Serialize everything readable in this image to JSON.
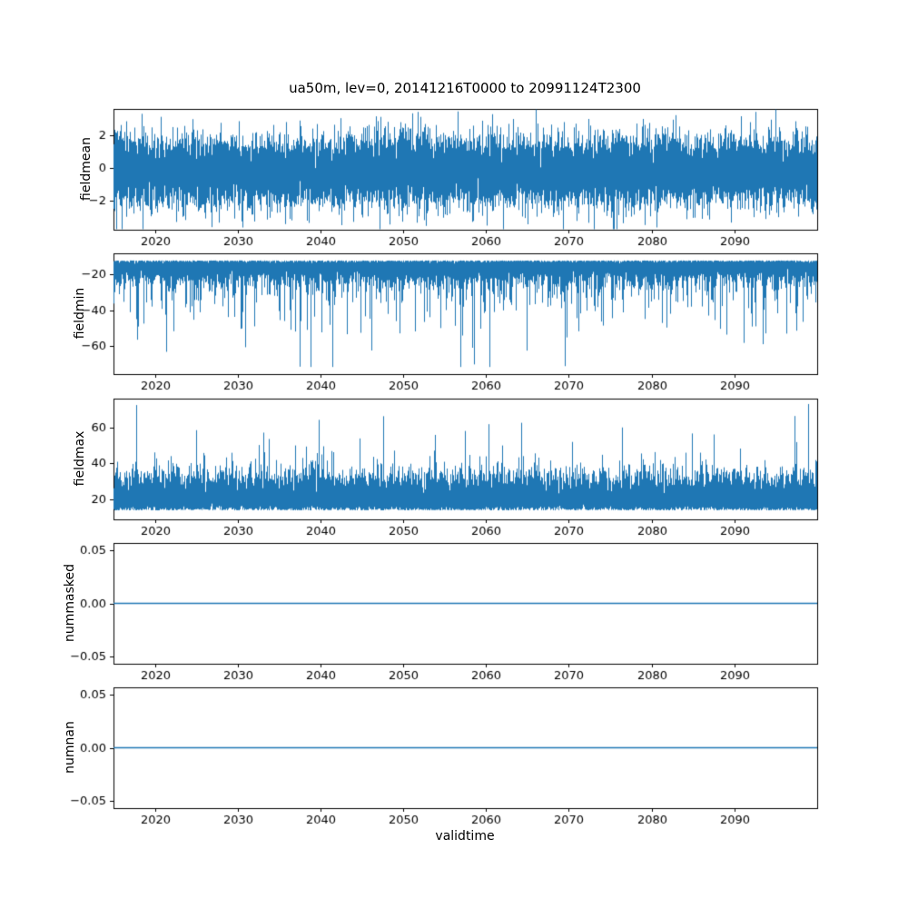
{
  "title": "ua50m, lev=0, 20141216T0000 to 20991124T2300",
  "xlabel": "validtime",
  "line_color": "#1f77b4",
  "axis_color": "#000000",
  "x_range": [
    2015,
    2100
  ],
  "xticks": [
    2020,
    2030,
    2040,
    2050,
    2060,
    2070,
    2080,
    2090
  ],
  "xticklabels": [
    "2020",
    "2030",
    "2040",
    "2050",
    "2060",
    "2070",
    "2080",
    "2090"
  ],
  "chart_data": [
    {
      "type": "line",
      "name": "fieldmean",
      "ylabel": "fieldmean",
      "ylim": [
        -3.8,
        3.6
      ],
      "yticks": [
        -2,
        0,
        2
      ],
      "yticklabels": [
        "−2",
        "0",
        "2"
      ],
      "grid": false,
      "series": {
        "kind": "noisy_gaussian",
        "mean": -0.2,
        "sd": 1.05,
        "typical_envelope": [
          -2.6,
          2.2
        ],
        "extremes": [
          -3.5,
          3.3
        ],
        "seed": 11
      }
    },
    {
      "type": "line",
      "name": "fieldmin",
      "ylabel": "fieldmin",
      "ylim": [
        -76,
        -8
      ],
      "yticks": [
        -60,
        -40,
        -20
      ],
      "yticklabels": [
        "−60",
        "−40",
        "−20"
      ],
      "grid": false,
      "series": {
        "kind": "noisy_spikes_down",
        "base": -12,
        "band_sd": 5,
        "dense_band": [
          -25,
          -11
        ],
        "spike_prob": 0.45,
        "spike_offset": 13,
        "spike_scale": 10,
        "spike_limit": -72,
        "seed": 22
      }
    },
    {
      "type": "line",
      "name": "fieldmax",
      "ylabel": "fieldmax",
      "ylim": [
        9,
        76
      ],
      "yticks": [
        20,
        40,
        60
      ],
      "yticklabels": [
        "20",
        "40",
        "60"
      ],
      "grid": false,
      "series": {
        "kind": "noisy_spikes_up",
        "base": 14,
        "band_sd": 9,
        "dense_band": [
          13,
          38
        ],
        "spike_prob": 0.4,
        "spike_offset": 12,
        "spike_scale": 9,
        "spike_limit": 73,
        "seed": 33
      }
    },
    {
      "type": "line",
      "name": "nummasked",
      "ylabel": "nummasked",
      "ylim": [
        -0.057,
        0.057
      ],
      "yticks": [
        -0.05,
        0,
        0.05
      ],
      "yticklabels": [
        "−0.05",
        "0.00",
        "0.05"
      ],
      "grid": false,
      "series": {
        "kind": "constant",
        "value": 0
      }
    },
    {
      "type": "line",
      "name": "numnan",
      "ylabel": "numnan",
      "ylim": [
        -0.057,
        0.057
      ],
      "yticks": [
        -0.05,
        0,
        0.05
      ],
      "yticklabels": [
        "−0.05",
        "0.00",
        "0.05"
      ],
      "grid": false,
      "series": {
        "kind": "constant",
        "value": 0
      }
    }
  ]
}
